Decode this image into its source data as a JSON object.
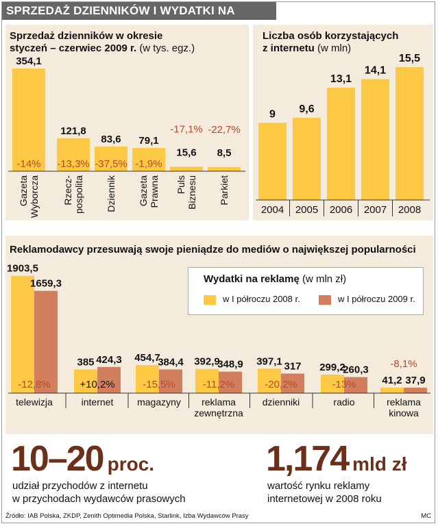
{
  "header": {
    "title": "SPRZEDAŻ DZIENNIKÓW I WYDATKI NA REKLAMĘ"
  },
  "colors": {
    "yellow": "#fdc843",
    "brown": "#d17f5c",
    "panel": "#f4ebdd",
    "negative": "#b54a2a",
    "title_bg": "#666666"
  },
  "chart_data": [
    {
      "type": "bar",
      "title": "Sprzedaż dzienników w okresie styczeń – czerwiec 2009 r.",
      "title_line1": "Sprzedaż dzienników w okresie",
      "title_line2": "styczeń – czerwiec 2009 r.",
      "unit": "(w tys. egz.)",
      "categories": [
        "Gazeta Wyborcza",
        "Rzecz-pospolita",
        "Dziennik",
        "Gazeta Prawna",
        "Puls Biznesu",
        "Parkiet"
      ],
      "category_lines": [
        [
          "Gazeta",
          "Wyborcza"
        ],
        [
          "Rzecz-",
          "pospolita"
        ],
        [
          "Dziennik"
        ],
        [
          "Gazeta",
          "Prawna"
        ],
        [
          "Puls",
          "Biznesu"
        ],
        [
          "Parkiet"
        ]
      ],
      "values": [
        354.1,
        121.8,
        83.6,
        79.1,
        15.6,
        8.5
      ],
      "value_labels": [
        "354,1",
        "121,8",
        "83,6",
        "79,1",
        "15,6",
        "8,5"
      ],
      "change_labels": [
        "-14%",
        "-13,3%",
        "-37,5%",
        "-1,9%",
        "-17,1%",
        "-22,7%"
      ]
    },
    {
      "type": "bar",
      "title": "Liczba osób korzystających z internetu",
      "title_line1": "Liczba osób korzystających",
      "title_line2": "z internetu",
      "unit": "(w mln)",
      "categories": [
        "2004",
        "2005",
        "2006",
        "2007",
        "2008"
      ],
      "values": [
        9,
        9.6,
        13.1,
        14.1,
        15.5
      ],
      "value_labels": [
        "9",
        "9,6",
        "13,1",
        "14,1",
        "15,5"
      ]
    },
    {
      "type": "bar",
      "title": "Reklamodawcy przesuwają swoje pieniądze do mediów o największej popularności",
      "legend_title": "Wydatki na reklamę",
      "legend_unit": "(w mln zł)",
      "categories": [
        "telewizja",
        "internet",
        "magazyny",
        "reklama zewnętrzna",
        "dzienniki",
        "radio",
        "reklama kinowa"
      ],
      "category_lines": [
        [
          "telewizja"
        ],
        [
          "internet"
        ],
        [
          "magazyny"
        ],
        [
          "reklama",
          "zewnętrzna"
        ],
        [
          "dzienniki"
        ],
        [
          "radio"
        ],
        [
          "reklama",
          "kinowa"
        ]
      ],
      "series": [
        {
          "name": "w I półroczu 2008 r.",
          "values": [
            1903.5,
            385,
            454.7,
            392.9,
            397.1,
            299.2,
            41.2
          ],
          "value_labels": [
            "1903,5",
            "385",
            "454,7",
            "392,9",
            "397,1",
            "299,2",
            "41,2"
          ]
        },
        {
          "name": "w I półroczu 2009 r.",
          "values": [
            1659.3,
            424.3,
            384.4,
            348.9,
            317,
            260.3,
            37.9
          ],
          "value_labels": [
            "1659,3",
            "424,3",
            "384,4",
            "348,9",
            "317",
            "260,3",
            "37,9"
          ]
        }
      ],
      "change_labels": [
        "-12,8%",
        "+10,2%",
        "-15,5%",
        "-11,2%",
        "-20,2%",
        "-13%",
        "-8,1%"
      ]
    }
  ],
  "stats": [
    {
      "value": "10–20",
      "unit": "proc.",
      "line1": "udział przychodów z internetu",
      "line2": "w przychodach wydawców prasowych"
    },
    {
      "value": "1,174",
      "unit": "mld zł",
      "line1": "wartość rynku reklamy",
      "line2": "internetowej w 2008 roku"
    }
  ],
  "footer": {
    "source": "Źródło: IAB Polska, ZKDP, Zenith Optimedia Polska, Starlink, Izba Wydawców Prasy",
    "credit": "MC"
  }
}
